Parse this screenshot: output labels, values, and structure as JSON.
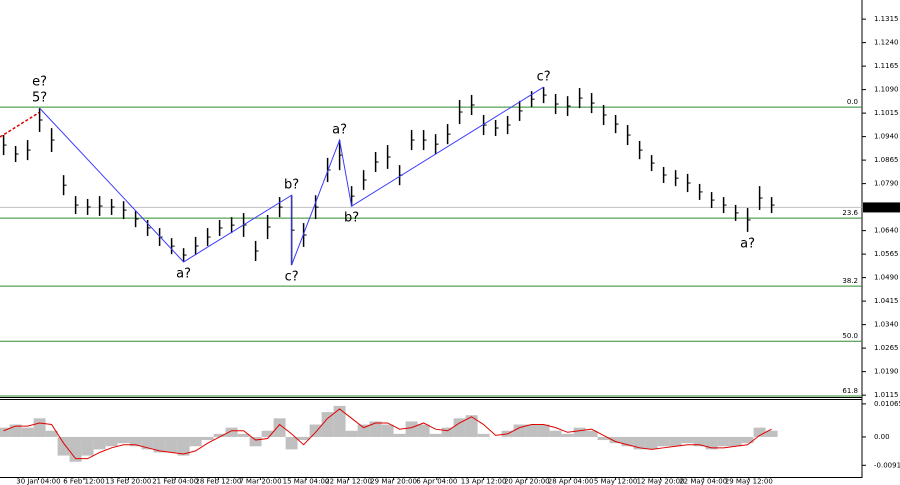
{
  "chart_data": [
    {
      "type": "hilo",
      "color": "#000000",
      "high": [
        1.0945,
        1.091,
        1.0929,
        1.1031,
        1.0967,
        1.0817,
        1.075,
        1.0741,
        1.075,
        1.0741,
        1.0734,
        1.0703,
        1.0674,
        1.0648,
        1.0616,
        1.0584,
        1.062,
        1.0648,
        1.0674,
        1.0683,
        1.0696,
        1.0607,
        1.069,
        1.0747,
        1.0753,
        1.0664,
        1.0753,
        1.0872,
        1.0929,
        1.0782,
        1.0833,
        1.0891,
        1.0913,
        1.0849,
        1.0961,
        1.0961,
        1.0948,
        1.098,
        1.1057,
        1.1073,
        1.1009,
        1.0993,
        1.1006,
        1.1054,
        1.1085,
        1.1098,
        1.1076,
        1.1069,
        1.1095,
        1.1079,
        1.1041,
        1.1009,
        1.0977,
        1.0926,
        1.0881,
        1.0843,
        1.0833,
        1.0821,
        1.0789,
        1.0763,
        1.0747,
        1.0722,
        1.0712,
        1.0782,
        1.0747
      ],
      "low": [
        1.0881,
        1.0859,
        1.0865,
        1.0955,
        1.0891,
        1.0753,
        1.0693,
        1.069,
        1.0687,
        1.069,
        1.0677,
        1.0651,
        1.0623,
        1.0591,
        1.0565,
        1.054,
        1.0562,
        1.0591,
        1.0623,
        1.0632,
        1.062,
        1.0543,
        1.0613,
        1.0683,
        1.053,
        1.0588,
        1.0677,
        1.0795,
        1.0833,
        1.0718,
        1.077,
        1.0827,
        1.0837,
        1.0785,
        1.0897,
        1.0897,
        1.0884,
        1.0916,
        1.098,
        1.1009,
        1.0945,
        1.0942,
        1.0948,
        1.099,
        1.1034,
        1.1047,
        1.1012,
        1.1006,
        1.1031,
        1.1015,
        1.0977,
        1.0951,
        1.0913,
        1.0868,
        1.083,
        1.0792,
        1.0782,
        1.0763,
        1.0738,
        1.0712,
        1.0696,
        1.0671,
        1.0636,
        1.0706,
        1.0696
      ],
      "xlim": [
        -0.3,
        64.7
      ],
      "ylim": [
        1.0109,
        1.1376
      ],
      "yticks": [
        1.1315,
        {
          "value": 1.124,
          "label": "1.1240"
        },
        1.1165,
        {
          "value": 1.109,
          "label": "1.1090"
        },
        1.1015,
        {
          "value": 1.094,
          "label": "1.0940"
        },
        1.0865,
        {
          "value": 1.079,
          "label": "1.0790"
        },
        {
          "value": 1.064,
          "label": "1.0640"
        },
        1.0565,
        {
          "value": 1.049,
          "label": "1.0490"
        },
        1.0415,
        {
          "value": 1.034,
          "label": "1.0340"
        },
        1.0265,
        {
          "value": 1.019,
          "label": "1.0190"
        },
        1.0115
      ],
      "last_price": 1.0714,
      "level_color": "#2e8b2e",
      "levels": [
        {
          "label": "0.0",
          "price": 1.1034
        },
        {
          "label": "23.6",
          "price": 1.068
        },
        {
          "label": "38.2",
          "price": 1.0463
        },
        {
          "label": "50.0",
          "price": 1.0287
        },
        {
          "label": "61.8",
          "price": 1.0112
        }
      ],
      "waves": [
        {
          "label": "e?",
          "bar": 3,
          "at": "high",
          "color": "#e00000"
        },
        {
          "label": "5?",
          "bar": 3,
          "at": "high",
          "color": "#1a1aff"
        },
        {
          "label": "a?",
          "bar": 15,
          "at": "low",
          "color": "#1a1aff"
        },
        {
          "label": "b?",
          "bar": 24,
          "at": "high",
          "color": "#1a1aff"
        },
        {
          "label": "c?",
          "bar": 24,
          "at": "low",
          "color": "#1a1aff"
        },
        {
          "label": "a?",
          "bar": 28,
          "at": "high",
          "color": "#1a1aff"
        },
        {
          "label": "b?",
          "bar": 29,
          "at": "low",
          "color": "#1a1aff"
        },
        {
          "label": "c?",
          "bar": 45,
          "at": "high",
          "color": "#1a1aff"
        },
        {
          "label": "a?",
          "bar": 62,
          "at": "low",
          "color": "#1a1aff"
        }
      ],
      "wave_line": {
        "color": "#3a3aff",
        "through": [
          1,
          2,
          3,
          4,
          5,
          6,
          7
        ]
      }
    },
    {
      "type": "oscillator",
      "series": [
        {
          "type": "bar",
          "color": "#c0c0c0",
          "values": [
            0.003,
            0.004,
            0.003,
            0.006,
            0.002,
            -0.006,
            -0.008,
            -0.006,
            -0.004,
            -0.003,
            -0.002,
            -0.003,
            -0.004,
            -0.005,
            -0.005,
            -0.006,
            -0.003,
            -0.001,
            0.001,
            0.003,
            0.001,
            -0.003,
            0.002,
            0.006,
            -0.004,
            -0.001,
            0.004,
            0.008,
            0.01,
            0.002,
            0.004,
            0.005,
            0.004,
            0.001,
            0.005,
            0.004,
            0.001,
            0.003,
            0.006,
            0.007,
            0.001,
            0,
            0.002,
            0.004,
            0.004,
            0.004,
            0.002,
            0.001,
            0.003,
            0.002,
            -0.001,
            -0.002,
            -0.003,
            -0.004,
            -0.004,
            -0.003,
            -0.003,
            -0.002,
            -0.003,
            -0.004,
            -0.003,
            -0.003,
            -0.002,
            0.003,
            0.002
          ]
        },
        {
          "type": "line",
          "color": "#e00000",
          "values": [
            0.002,
            0.0035,
            0.0035,
            0.0045,
            0.004,
            -0.002,
            -0.007,
            -0.007,
            -0.005,
            -0.0035,
            -0.0025,
            -0.0025,
            -0.0035,
            -0.0045,
            -0.005,
            -0.0055,
            -0.0045,
            -0.002,
            0,
            0.002,
            0.002,
            -0.001,
            -0.0005,
            0.004,
            0.001,
            -0.0025,
            0.0015,
            0.006,
            0.009,
            0.006,
            0.003,
            0.0045,
            0.0045,
            0.0025,
            0.003,
            0.0045,
            0.0025,
            0.002,
            0.0045,
            0.0065,
            0.004,
            0.0005,
            0.001,
            0.003,
            0.004,
            0.004,
            0.003,
            0.0015,
            0.002,
            0.0025,
            0.0005,
            -0.0015,
            -0.0025,
            -0.0035,
            -0.004,
            -0.0035,
            -0.003,
            -0.0025,
            -0.0025,
            -0.0035,
            -0.0035,
            -0.003,
            -0.0025,
            0.0005,
            0.0025
          ]
        }
      ],
      "xlim": [
        -0.3,
        64.7
      ],
      "ylim": [
        -0.0129,
        0.0119
      ],
      "yticks": [
        0.01065,
        {
          "value": 0,
          "label": "0.00"
        },
        -0.00913
      ],
      "xticks": [
        {
          "value": 2.9,
          "label": "30 Jan 04:00"
        },
        {
          "value": 6.7,
          "label": "6 Feb 12:00"
        },
        {
          "value": 10.4,
          "label": "13 Feb 20:00"
        },
        {
          "value": 14.3,
          "label": "21 Feb 04:00"
        },
        {
          "value": 17.9,
          "label": "28 Feb 12:00"
        },
        {
          "value": 21.4,
          "label": "7 Mar 20:00"
        },
        {
          "value": 25.2,
          "label": "15 Mar 04:00"
        },
        {
          "value": 28.75,
          "label": "22 Mar 12:00"
        },
        {
          "value": 32.5,
          "label": "29 Mar 20:00"
        },
        {
          "value": 36.1,
          "label": "6 Apr 04:00"
        },
        {
          "value": 40,
          "label": "13 Apr 12:00"
        },
        {
          "value": 43.6,
          "label": "20 Apr 20:00"
        },
        {
          "value": 47.25,
          "label": "28 Apr 04:00"
        },
        {
          "value": 51,
          "label": "5 May 12:00"
        },
        {
          "value": 54.75,
          "label": "12 May 20:00"
        },
        {
          "value": 58.3,
          "label": "22 May 04:00"
        },
        {
          "value": 62.1,
          "label": "29 May 12:00"
        }
      ]
    }
  ]
}
